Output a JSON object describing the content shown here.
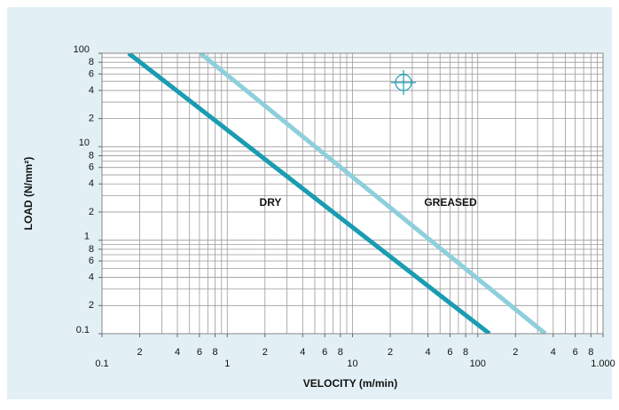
{
  "chart_data": {
    "type": "line",
    "x_label": "VELOCITY (m/min)",
    "y_label": "LOAD (N/mm²)",
    "log_x": true,
    "log_y": true,
    "grid": true,
    "xlim": [
      0.1,
      1000
    ],
    "ylim": [
      0.1,
      100
    ],
    "xticks": [
      0.1,
      {
        "value": 0.2,
        "label": "2"
      },
      {
        "value": 0.4,
        "label": "4"
      },
      {
        "value": 0.6,
        "label": "6"
      },
      {
        "value": 0.8,
        "label": "8"
      },
      1,
      {
        "value": 2,
        "label": "2"
      },
      {
        "value": 4,
        "label": "4"
      },
      {
        "value": 6,
        "label": "6"
      },
      {
        "value": 8,
        "label": "8"
      },
      10,
      {
        "value": 20,
        "label": "2"
      },
      {
        "value": 40,
        "label": "4"
      },
      {
        "value": 60,
        "label": "6"
      },
      {
        "value": 80,
        "label": "8"
      },
      100,
      {
        "value": 200,
        "label": "2"
      },
      {
        "value": 400,
        "label": "4"
      },
      {
        "value": 600,
        "label": "6"
      },
      {
        "value": 800,
        "label": "8"
      },
      {
        "value": 1000,
        "label": "1.000"
      }
    ],
    "yticks": [
      0.1,
      {
        "value": 0.2,
        "label": "2"
      },
      {
        "value": 0.4,
        "label": "4"
      },
      {
        "value": 0.6,
        "label": "6"
      },
      {
        "value": 0.8,
        "label": "8"
      },
      1,
      {
        "value": 2,
        "label": "2"
      },
      {
        "value": 4,
        "label": "4"
      },
      {
        "value": 6,
        "label": "6"
      },
      {
        "value": 8,
        "label": "8"
      },
      10,
      {
        "value": 20,
        "label": "2"
      },
      {
        "value": 40,
        "label": "4"
      },
      {
        "value": 60,
        "label": "6"
      },
      {
        "value": 80,
        "label": "8"
      },
      100
    ],
    "x_minor_grid": [
      0.3,
      0.5,
      0.7,
      0.9,
      3,
      5,
      7,
      9,
      30,
      50,
      70,
      90,
      300,
      500,
      700,
      900
    ],
    "y_minor_grid": [
      0.3,
      0.5,
      0.7,
      0.9,
      3,
      5,
      7,
      9,
      30,
      50,
      70,
      90
    ],
    "series": [
      {
        "name": "DRY",
        "color": "#1a9cb2",
        "x": [
          0.163,
          124
        ],
        "values": [
          100,
          0.1
        ]
      },
      {
        "name": "GREASED",
        "color": "#8ecfdc",
        "x": [
          0.61,
          346
        ],
        "values": [
          100,
          0.1
        ]
      }
    ]
  }
}
